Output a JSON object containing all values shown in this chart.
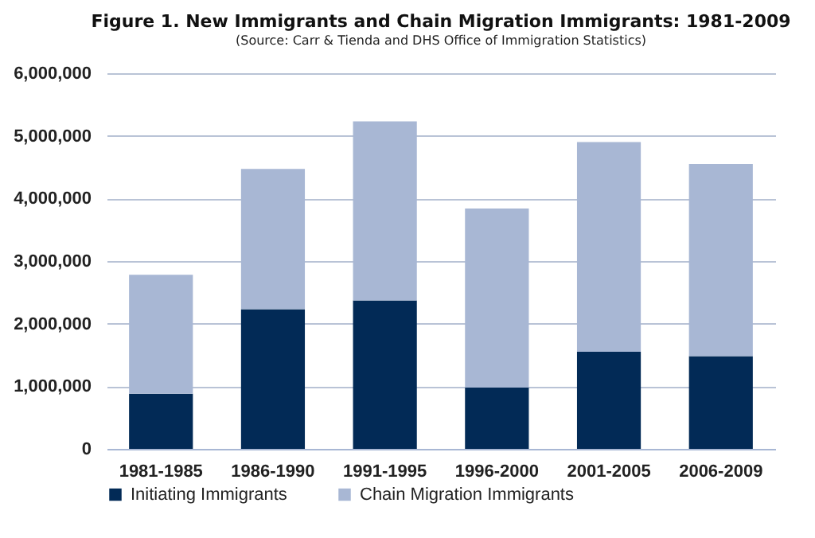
{
  "chart_data": {
    "type": "bar",
    "title": "Figure 1.  New Immigrants and Chain Migration Immigrants: 1981-2009",
    "subtitle": "(Source: Carr & Tienda and DHS Office of Immigration Statistics)",
    "categories": [
      "1981-1985",
      "1986-1990",
      "1991-1995",
      "1996-2000",
      "2001-2005",
      "2006-2009"
    ],
    "series": [
      {
        "name": "Initiating Immigrants",
        "color": "#022a56",
        "values": [
          880000,
          2230000,
          2370000,
          980000,
          1550000,
          1480000
        ]
      },
      {
        "name": "Chain Migration Immigrants",
        "color": "#a8b7d4",
        "values": [
          1900000,
          2240000,
          2860000,
          2860000,
          3350000,
          3070000
        ]
      }
    ],
    "stacked": true,
    "ylim": [
      0,
      6000000
    ],
    "yticks": [
      0,
      {
        "value": 1000000,
        "label": "1,000,000"
      },
      {
        "value": 2000000,
        "label": "2,000,000"
      },
      {
        "value": 3000000,
        "label": "3,000,000"
      },
      {
        "value": 4000000,
        "label": "4,000,000"
      },
      {
        "value": 5000000,
        "label": "5,000,000"
      },
      {
        "value": 6000000,
        "label": "6,000,000"
      }
    ],
    "grid": "y",
    "legend": "bottom"
  }
}
